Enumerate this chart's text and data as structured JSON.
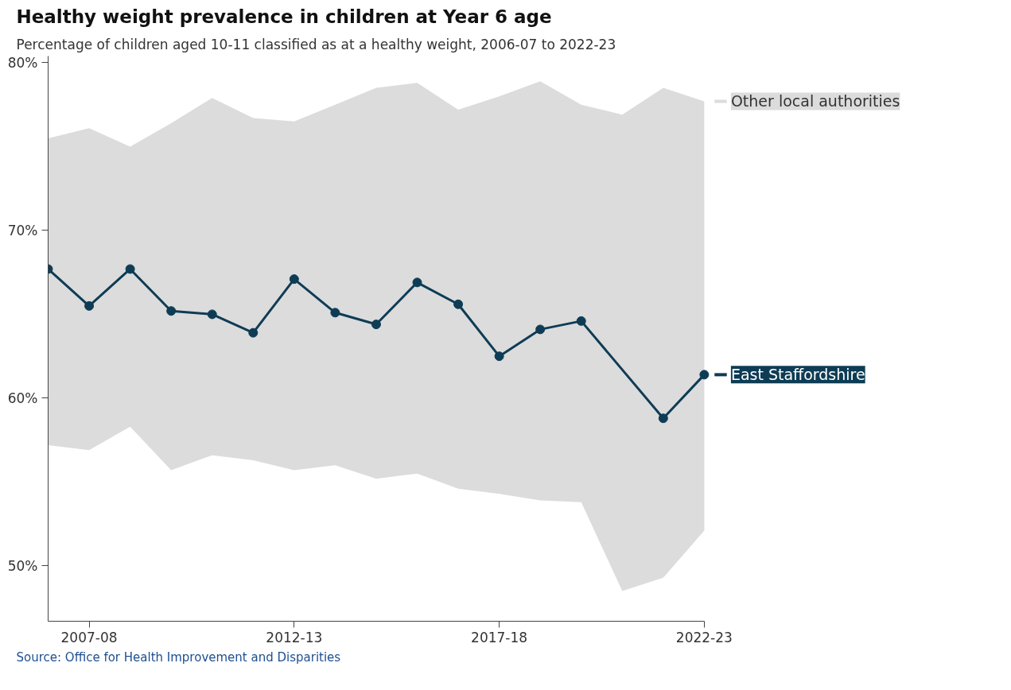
{
  "chart_data": {
    "type": "line",
    "title": "Healthy weight prevalence in children at Year 6 age",
    "subtitle": "Percentage of children aged 10-11 classified as at a healthy weight, 2006-07 to 2022-23",
    "categories": [
      null,
      "2007-08",
      null,
      null,
      null,
      null,
      "2012-13",
      null,
      null,
      null,
      null,
      "2017-18",
      null,
      null,
      null,
      null,
      "2022-23"
    ],
    "series": [
      {
        "name": "Other local authorities",
        "type": "area",
        "color": "#dcdcdc",
        "values": [
          null,
          null,
          null,
          null,
          null,
          null,
          null,
          null,
          null,
          null,
          null,
          null,
          null,
          null,
          null,
          null,
          null
        ],
        "lower": [
          57.2,
          56.9,
          58.3,
          55.7,
          56.6,
          56.3,
          55.7,
          56.0,
          55.2,
          55.5,
          54.6,
          54.3,
          53.9,
          53.8,
          48.5,
          49.3,
          52.1
        ],
        "upper": [
          75.5,
          76.1,
          75.0,
          76.4,
          77.9,
          76.7,
          76.5,
          77.5,
          78.5,
          78.8,
          77.2,
          78.0,
          78.9,
          77.5,
          76.9,
          78.5,
          77.7
        ]
      },
      {
        "name": "East Staffordshire",
        "color": "#0e3c55",
        "marker": "circle",
        "values": [
          67.7,
          65.5,
          67.7,
          65.2,
          65.0,
          63.9,
          67.1,
          65.1,
          64.4,
          66.9,
          65.6,
          62.5,
          64.1,
          64.6,
          null,
          58.8,
          61.4
        ]
      }
    ],
    "ylim": [
      46.7,
      80.4
    ],
    "yticks": [
      {
        "value": 50,
        "label": "50%"
      },
      {
        "value": 60,
        "label": "60%"
      },
      {
        "value": 70,
        "label": "70%"
      },
      {
        "value": 80,
        "label": "80%"
      }
    ],
    "grid": false,
    "annotations": [
      "Source: Office for Health Improvement and Disparities"
    ]
  }
}
